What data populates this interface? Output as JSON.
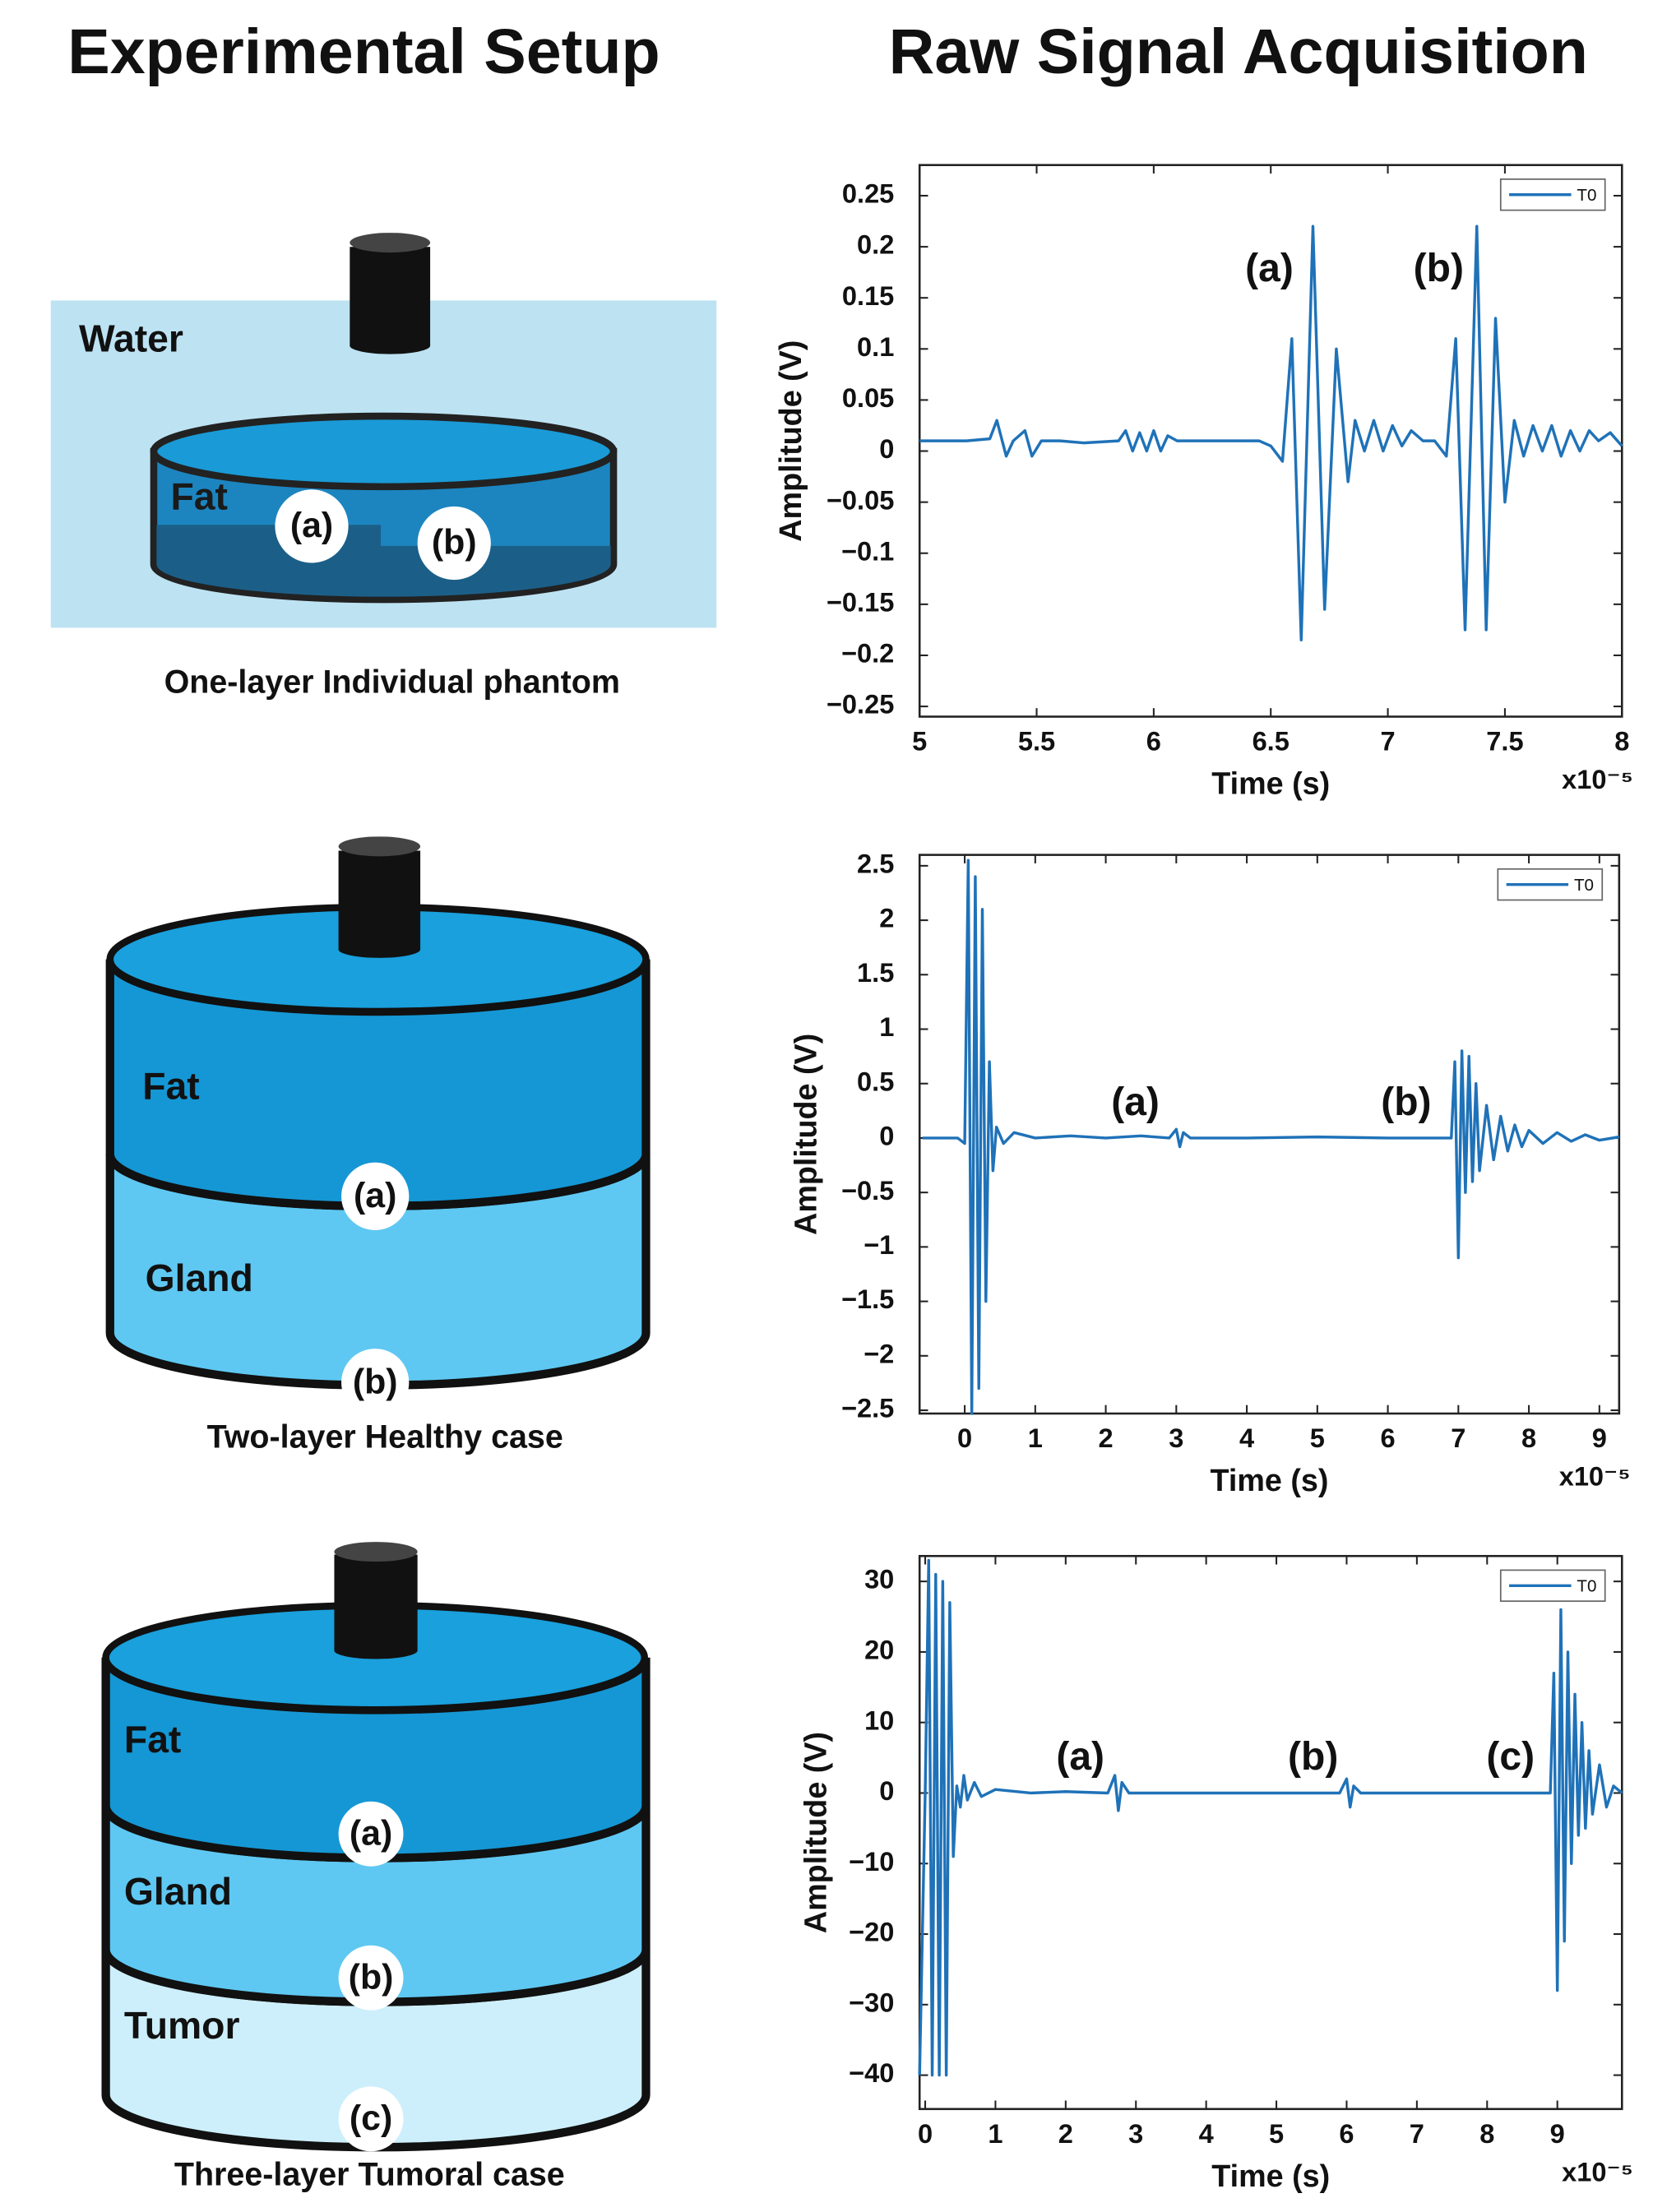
{
  "headings": {
    "left": "Experimental Setup",
    "right": "Raw Signal Acquisition"
  },
  "diagrams": [
    {
      "caption": "One-layer Individual phantom",
      "labels": [
        "Water",
        "Fat"
      ],
      "markers": [
        "(a)",
        "(b)"
      ]
    },
    {
      "caption": "Two-layer Healthy case",
      "labels": [
        "Fat",
        "Gland"
      ],
      "markers": [
        "(a)",
        "(b)"
      ]
    },
    {
      "caption": "Three-layer Tumoral case",
      "labels": [
        "Fat",
        "Gland",
        "Tumor"
      ],
      "markers": [
        "(a)",
        "(b)",
        "(c)"
      ]
    }
  ],
  "chart_data": [
    {
      "type": "line",
      "x_label": "Time (s)",
      "y_label": "Amplitude (V)",
      "x_multiplier": "x10⁻⁵",
      "xlim": [
        5,
        8
      ],
      "ylim": [
        -0.26,
        0.28
      ],
      "xticks": [
        5,
        5.5,
        6,
        6.5,
        7,
        7.5,
        8
      ],
      "yticks": [
        0.25,
        0.2,
        0.15,
        0.1,
        0.05,
        0,
        {
          "value": -0.05,
          "label": "−0.05"
        },
        {
          "value": -0.1,
          "label": "−0.1"
        },
        {
          "value": -0.15,
          "label": "−0.15"
        },
        {
          "value": -0.2,
          "label": "−0.2"
        },
        {
          "value": -0.25,
          "label": "−0.25"
        }
      ],
      "annotations": [
        "(a)",
        "(b)"
      ],
      "x": [
        5.0,
        5.2,
        5.3,
        5.33,
        5.37,
        5.4,
        5.45,
        5.48,
        5.52,
        5.6,
        5.7,
        5.85,
        5.88,
        5.91,
        5.94,
        5.97,
        6.0,
        6.03,
        6.06,
        6.1,
        6.2,
        6.3,
        6.45,
        6.5,
        6.55,
        6.59,
        6.63,
        6.68,
        6.73,
        6.78,
        6.83,
        6.86,
        6.9,
        6.94,
        6.98,
        7.02,
        7.06,
        7.1,
        7.15,
        7.2,
        7.25,
        7.29,
        7.33,
        7.38,
        7.42,
        7.46,
        7.5,
        7.54,
        7.58,
        7.62,
        7.66,
        7.7,
        7.74,
        7.78,
        7.82,
        7.86,
        7.9,
        7.95,
        8.0
      ],
      "series": [
        {
          "name": "T0",
          "color": "#1f72b8",
          "values": [
            0.01,
            0.01,
            0.012,
            0.03,
            -0.005,
            0.01,
            0.02,
            -0.005,
            0.01,
            0.01,
            0.008,
            0.01,
            0.02,
            0.0,
            0.018,
            0.0,
            0.02,
            0.0,
            0.015,
            0.01,
            0.01,
            0.01,
            0.01,
            0.005,
            -0.01,
            0.11,
            -0.185,
            0.22,
            -0.155,
            0.1,
            -0.03,
            0.03,
            0.0,
            0.03,
            0.0,
            0.025,
            0.005,
            0.02,
            0.01,
            0.01,
            -0.005,
            0.11,
            -0.175,
            0.22,
            -0.175,
            0.13,
            -0.05,
            0.03,
            -0.005,
            0.025,
            0.0,
            0.025,
            -0.005,
            0.02,
            0.0,
            0.02,
            0.01,
            0.018,
            0.005
          ]
        }
      ]
    },
    {
      "type": "line",
      "x_label": "Time (s)",
      "y_label": "Amplitude (V)",
      "x_multiplier": "x10⁻⁵",
      "xlim": [
        -0.64,
        9.28
      ],
      "ylim": [
        -2.53,
        2.6
      ],
      "xticks": [
        0,
        1,
        2,
        3,
        4,
        5,
        6,
        7,
        8,
        9
      ],
      "yticks": [
        2.5,
        2,
        1.5,
        1,
        0.5,
        0,
        {
          "value": -0.5,
          "label": "−0.5"
        },
        {
          "value": -1,
          "label": "−1"
        },
        {
          "value": -1.5,
          "label": "−1.5"
        },
        {
          "value": -2,
          "label": "−2"
        },
        {
          "value": -2.5,
          "label": "−2.5"
        }
      ],
      "annotations": [
        "(a)",
        "(b)"
      ],
      "x": [
        -0.6,
        -0.1,
        0,
        0.05,
        0.1,
        0.15,
        0.2,
        0.25,
        0.3,
        0.35,
        0.4,
        0.45,
        0.55,
        0.7,
        1,
        1.5,
        2,
        2.5,
        2.9,
        3.0,
        3.05,
        3.1,
        3.2,
        4,
        5,
        6,
        6.9,
        6.95,
        7.0,
        7.05,
        7.1,
        7.15,
        7.2,
        7.25,
        7.3,
        7.4,
        7.5,
        7.6,
        7.7,
        7.8,
        7.9,
        8.0,
        8.2,
        8.4,
        8.6,
        8.8,
        9.0,
        9.28
      ],
      "series": [
        {
          "name": "T0",
          "color": "#1f72b8",
          "values": [
            0,
            0,
            -0.05,
            2.55,
            -2.53,
            2.4,
            -2.3,
            2.1,
            -1.5,
            0.7,
            -0.3,
            0.1,
            -0.05,
            0.05,
            0,
            0.02,
            0,
            0.02,
            0,
            0.08,
            -0.08,
            0.05,
            0,
            0,
            0.01,
            0,
            0,
            0.7,
            -1.1,
            0.8,
            -0.5,
            0.75,
            -0.4,
            0.5,
            -0.3,
            0.3,
            -0.2,
            0.2,
            -0.12,
            0.12,
            -0.08,
            0.07,
            -0.05,
            0.05,
            -0.03,
            0.03,
            -0.02,
            0.01
          ]
        }
      ]
    },
    {
      "type": "line",
      "x_label": "Time (s)",
      "y_label": "Amplitude (V)",
      "x_multiplier": "x10⁻⁵",
      "xlim": [
        -0.08,
        9.92
      ],
      "ylim": [
        -44.8,
        33.6
      ],
      "xticks": [
        0,
        1,
        2,
        3,
        4,
        5,
        6,
        7,
        8,
        9
      ],
      "yticks": [
        30,
        20,
        10,
        0,
        {
          "value": -10,
          "label": "−10"
        },
        {
          "value": -20,
          "label": "−20"
        },
        {
          "value": -30,
          "label": "−30"
        },
        {
          "value": -40,
          "label": "−40"
        }
      ],
      "annotations": [
        "(a)",
        "(b)",
        "(c)"
      ],
      "x": [
        -0.08,
        0,
        0.05,
        0.1,
        0.15,
        0.2,
        0.25,
        0.3,
        0.35,
        0.4,
        0.45,
        0.5,
        0.55,
        0.6,
        0.7,
        0.8,
        1.0,
        1.5,
        2.0,
        2.6,
        2.7,
        2.75,
        2.8,
        2.9,
        4,
        5,
        5.9,
        6.0,
        6.05,
        6.1,
        6.2,
        7,
        8,
        8.9,
        8.95,
        9.0,
        9.05,
        9.1,
        9.15,
        9.2,
        9.25,
        9.3,
        9.35,
        9.4,
        9.45,
        9.5,
        9.6,
        9.7,
        9.8,
        9.92
      ],
      "series": [
        {
          "name": "T0",
          "color": "#1f72b8",
          "values": [
            -40,
            0,
            33,
            -40,
            31,
            -40,
            30,
            -40,
            27,
            -9,
            1,
            -2,
            2.5,
            -1,
            1.5,
            -0.5,
            0.5,
            0,
            0.2,
            0,
            2.5,
            -2.5,
            1.5,
            0,
            0,
            0,
            0,
            2,
            -2,
            1,
            0,
            0,
            0,
            0,
            17,
            -28,
            26,
            -21,
            20,
            -10,
            14,
            -6,
            10,
            -5,
            6,
            -3,
            4,
            -2,
            1,
            0
          ]
        }
      ]
    }
  ]
}
